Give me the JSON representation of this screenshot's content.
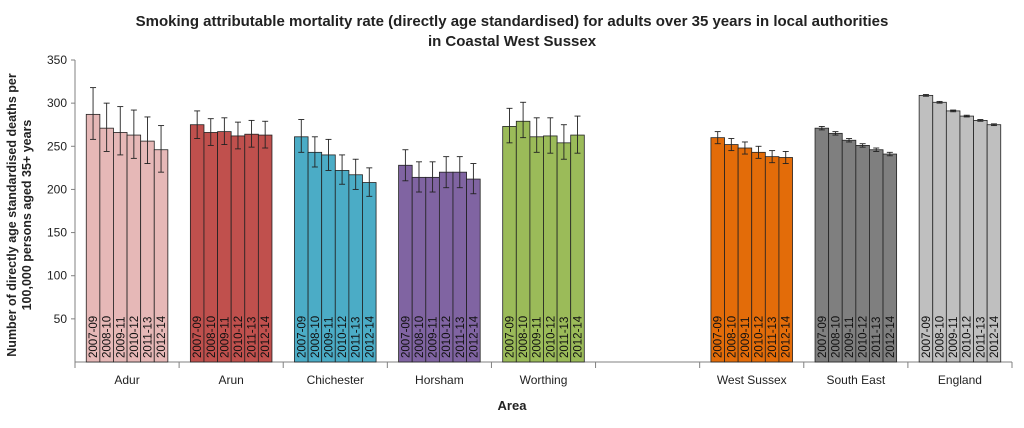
{
  "chart_data": {
    "type": "bar",
    "title": "Smoking attributable mortality rate (directly age standardised) for adults over 35 years in local authorities in Coastal West Sussex",
    "title_lines": [
      "Smoking attributable mortality rate (directly age standardised) for adults over 35 years in local authorities",
      "in Coastal West Sussex"
    ],
    "xlabel": "Area",
    "ylabel_lines": [
      "Number of directly age standardised  deaths per",
      "100,000 persons aged 35+ years"
    ],
    "ylim": [
      0,
      350
    ],
    "yticks": [
      50,
      100,
      150,
      200,
      250,
      300,
      350
    ],
    "grid": false,
    "periods": [
      "2007-09",
      "2008-10",
      "2009-11",
      "2010-12",
      "2011-13",
      "2012-14"
    ],
    "groups": [
      {
        "name": "Adur",
        "color": "#e6b8b7",
        "values": [
          287,
          271,
          266,
          263,
          256,
          246
        ],
        "ci": [
          [
            258,
            318
          ],
          [
            244,
            300
          ],
          [
            240,
            296
          ],
          [
            236,
            292
          ],
          [
            230,
            284
          ],
          [
            220,
            274
          ]
        ]
      },
      {
        "name": "Arun",
        "color": "#c0504d",
        "values": [
          275,
          266,
          267,
          262,
          264,
          263
        ],
        "ci": [
          [
            259,
            291
          ],
          [
            251,
            282
          ],
          [
            252,
            283
          ],
          [
            247,
            278
          ],
          [
            249,
            280
          ],
          [
            248,
            279
          ]
        ]
      },
      {
        "name": "Chichester",
        "color": "#4bacc6",
        "values": [
          261,
          243,
          240,
          222,
          217,
          208
        ],
        "ci": [
          [
            243,
            281
          ],
          [
            226,
            261
          ],
          [
            222,
            258
          ],
          [
            206,
            240
          ],
          [
            200,
            235
          ],
          [
            192,
            225
          ]
        ]
      },
      {
        "name": "Horsham",
        "color": "#8064a2",
        "values": [
          228,
          214,
          214,
          220,
          220,
          212
        ],
        "ci": [
          [
            210,
            246
          ],
          [
            197,
            232
          ],
          [
            197,
            232
          ],
          [
            202,
            238
          ],
          [
            202,
            238
          ],
          [
            195,
            230
          ]
        ]
      },
      {
        "name": "Worthing",
        "color": "#9bbb59",
        "values": [
          273,
          279,
          261,
          262,
          254,
          263
        ],
        "ci": [
          [
            254,
            294
          ],
          [
            260,
            301
          ],
          [
            243,
            283
          ],
          [
            242,
            283
          ],
          [
            235,
            275
          ],
          [
            242,
            285
          ]
        ]
      },
      {
        "name": "",
        "color": "#ffffff",
        "values": [],
        "ci": []
      },
      {
        "name": "West Sussex",
        "color": "#e36c09",
        "values": [
          260,
          252,
          248,
          243,
          238,
          237
        ],
        "ci": [
          [
            253,
            267
          ],
          [
            245,
            259
          ],
          [
            241,
            255
          ],
          [
            236,
            250
          ],
          [
            231,
            245
          ],
          [
            230,
            244
          ]
        ]
      },
      {
        "name": "South East",
        "color": "#7f7f7f",
        "values": [
          271,
          265,
          257,
          251,
          246,
          241
        ],
        "ci": [
          [
            269,
            273
          ],
          [
            263,
            267
          ],
          [
            255,
            259
          ],
          [
            249,
            253
          ],
          [
            244,
            248
          ],
          [
            239,
            243
          ]
        ]
      },
      {
        "name": "England",
        "color": "#bfbfbf",
        "values": [
          309,
          301,
          291,
          285,
          280,
          275
        ],
        "ci": [
          [
            308,
            310
          ],
          [
            300,
            302
          ],
          [
            290,
            292
          ],
          [
            284,
            286
          ],
          [
            279,
            281
          ],
          [
            274,
            276
          ]
        ]
      }
    ]
  }
}
